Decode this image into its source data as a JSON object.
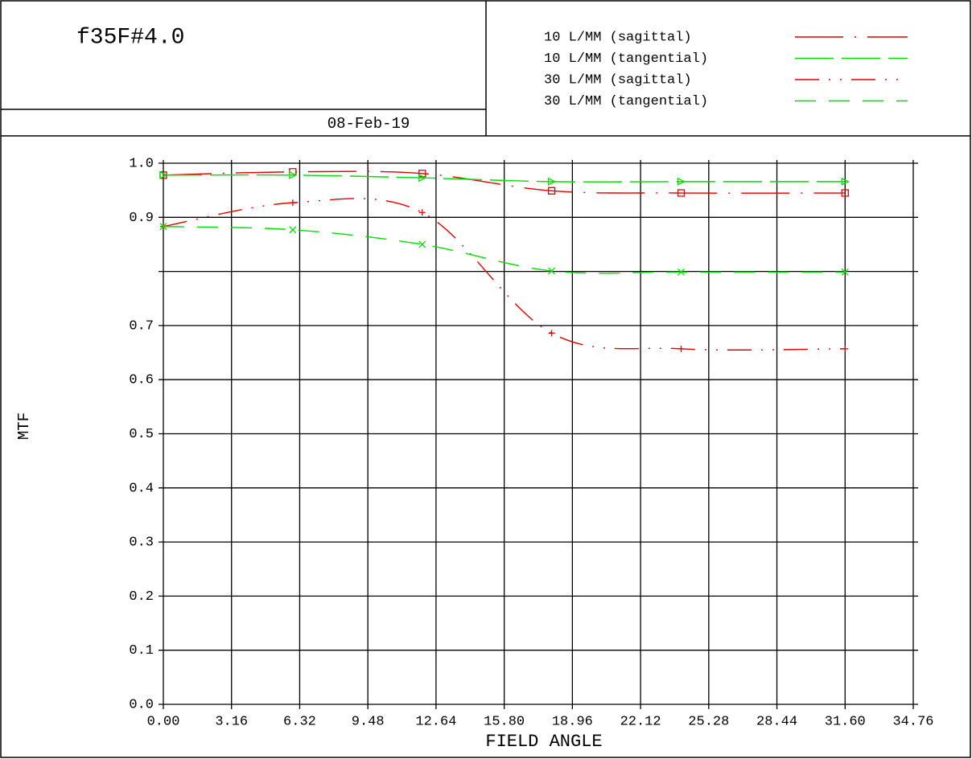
{
  "chart_data": {
    "type": "line",
    "title": "f35F#4.0",
    "date": "08-Feb-19",
    "xlabel": "FIELD ANGLE",
    "ylabel": "MTF",
    "x": [
      0,
      6,
      12,
      18,
      24,
      31.6
    ],
    "series": [
      {
        "name": "10 L/MM (sagittal)",
        "color": "#e00000",
        "dash": "60 14 2 14",
        "marker": "square",
        "values": [
          0.978,
          0.984,
          0.981,
          0.949,
          0.945,
          0.945
        ]
      },
      {
        "name": "10 L/MM (tangential)",
        "color": "#00dd00",
        "dash": "48 10",
        "marker": "triangle",
        "values": [
          0.978,
          0.978,
          0.973,
          0.966,
          0.966,
          0.966
        ]
      },
      {
        "name": "30 L/MM (sagittal)",
        "color": "#e00000",
        "dash": "30 12 2 12 2 12",
        "marker": "plus",
        "values": [
          0.883,
          0.927,
          0.909,
          0.686,
          0.657,
          0.657
        ]
      },
      {
        "name": "30 L/MM (tangential)",
        "color": "#00dd00",
        "dash": "26 16",
        "marker": "x",
        "values": [
          0.883,
          0.877,
          0.85,
          0.801,
          0.799,
          0.799
        ]
      }
    ],
    "xlim": [
      0,
      34.76
    ],
    "ylim": [
      0,
      1
    ],
    "xticks": [
      {
        "value": 0,
        "label": "0.00"
      },
      3.16,
      6.32,
      9.48,
      12.64,
      {
        "value": 15.8,
        "label": "15.80"
      },
      18.96,
      22.12,
      25.28,
      28.44,
      {
        "value": 31.6,
        "label": "31.60"
      },
      34.76
    ],
    "yticks": [
      {
        "value": 0,
        "label": "0.0"
      },
      0.1,
      0.2,
      0.3,
      0.4,
      0.5,
      0.6,
      0.7,
      {
        "value": 0.8,
        "label": null
      },
      0.9,
      {
        "value": 1,
        "label": "1.0"
      }
    ],
    "grid": true
  }
}
